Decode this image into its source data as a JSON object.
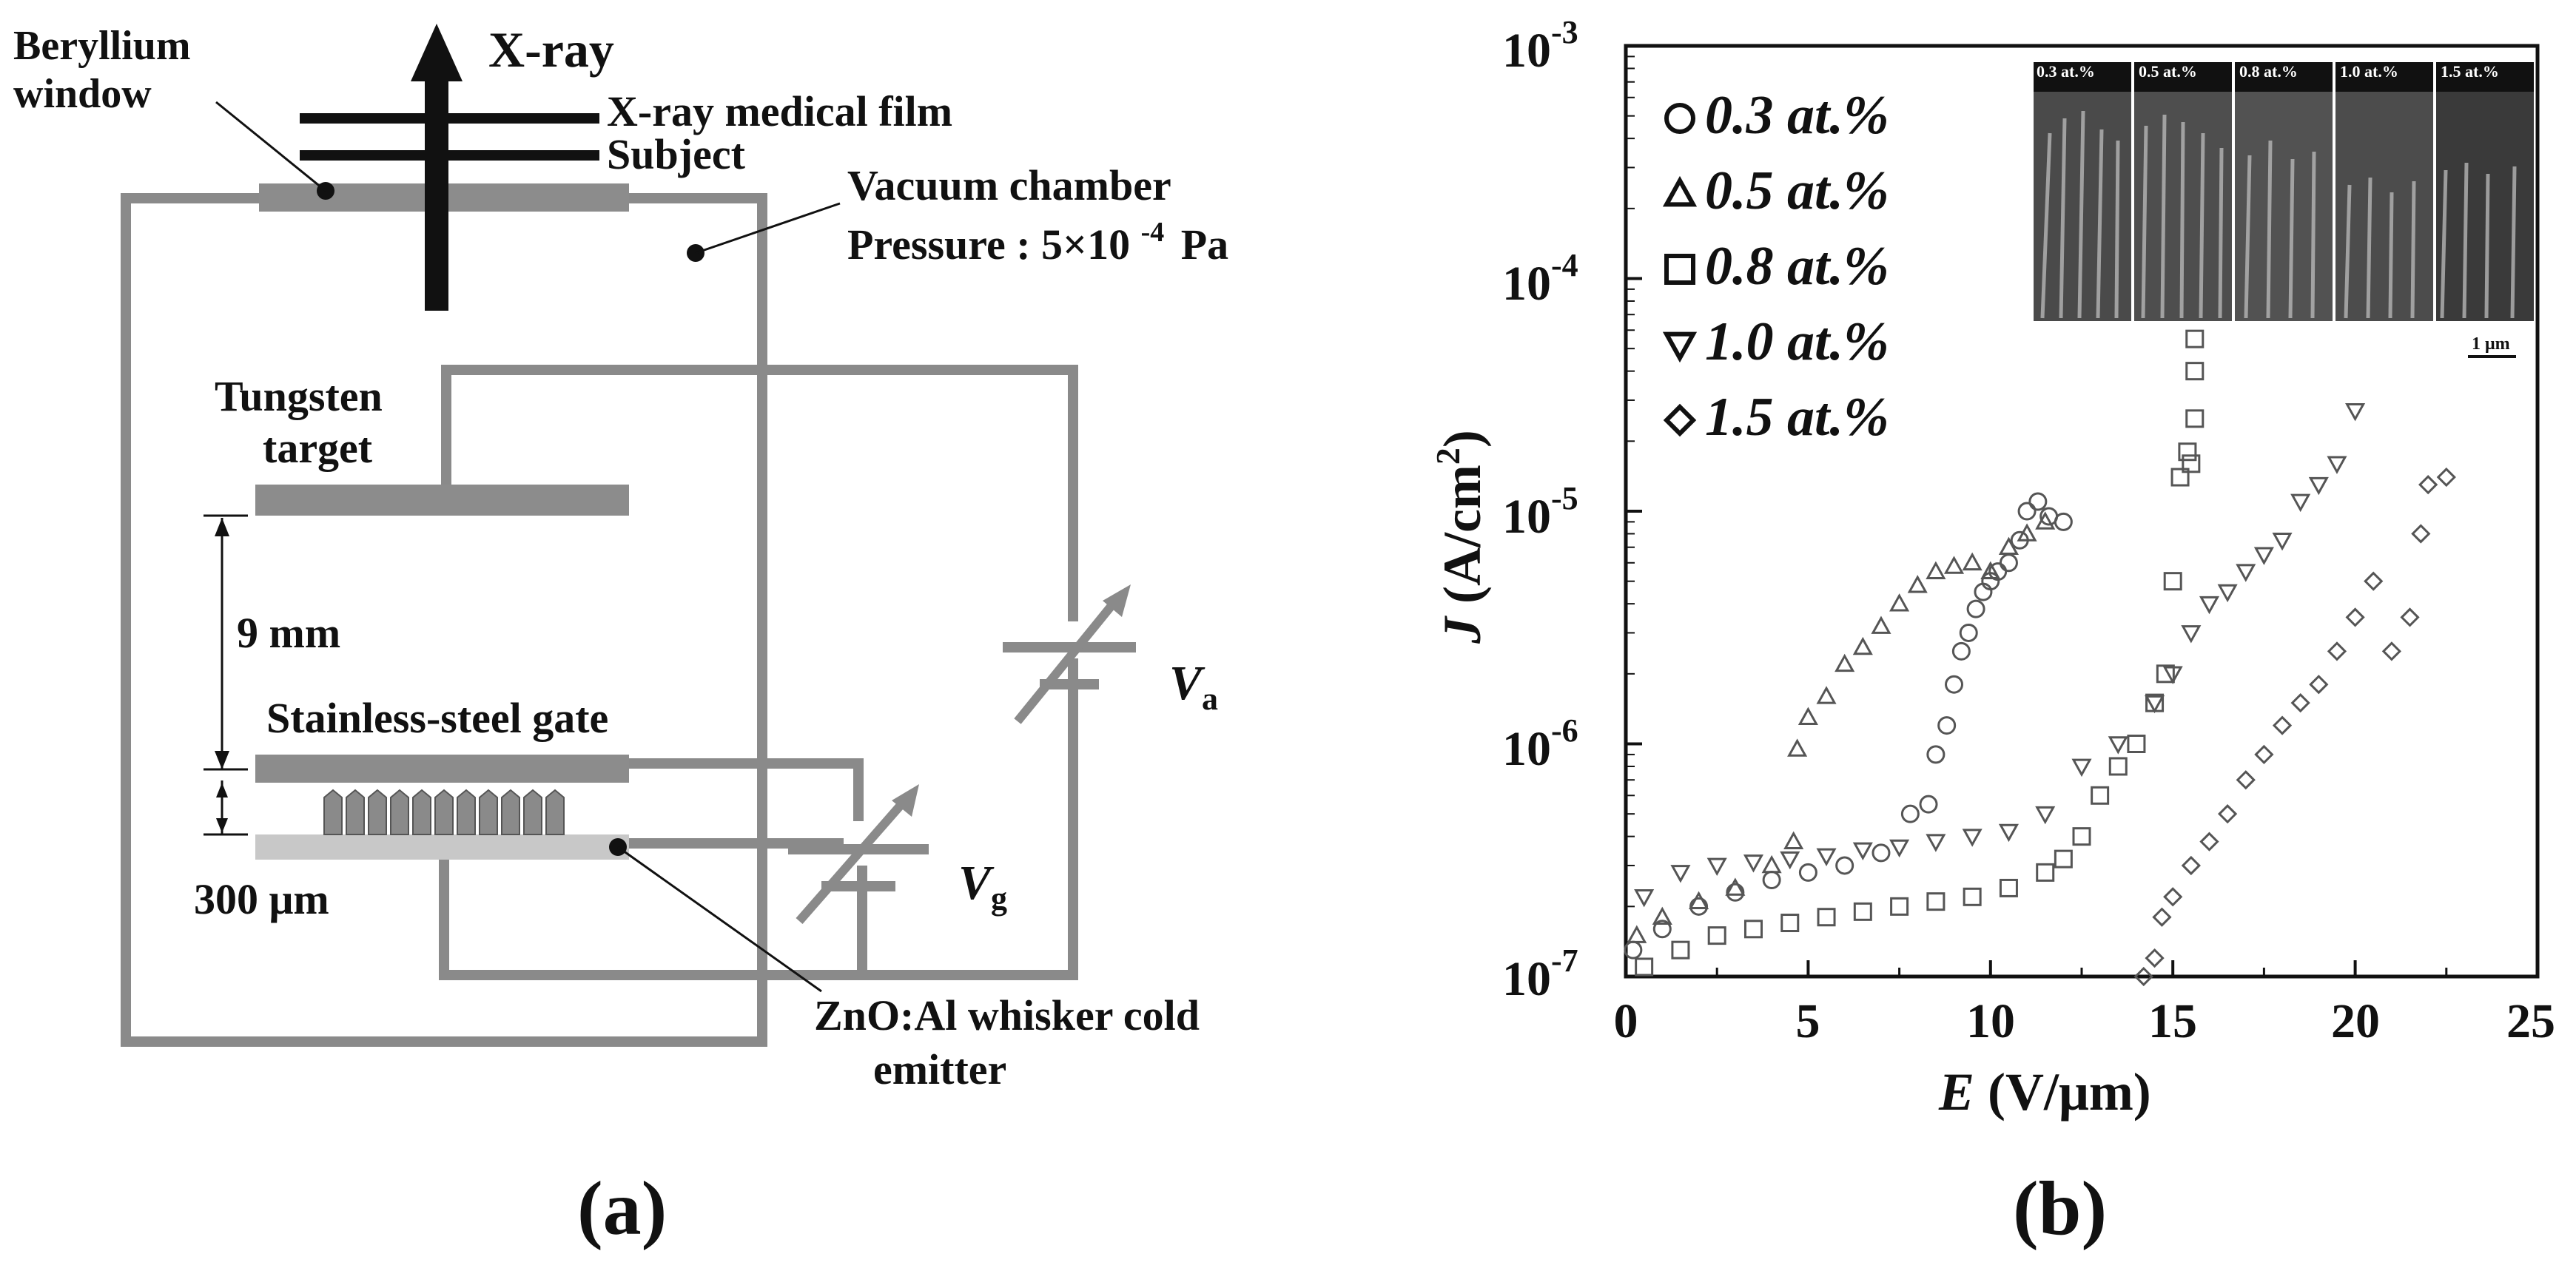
{
  "panel_a": {
    "caption": "(a)",
    "labels": {
      "beryllium": "Beryllium",
      "window": "window",
      "xray": "X-ray",
      "film": "X-ray medical film",
      "subject": "Subject",
      "vacuum_chamber": "Vacuum chamber",
      "pressure_prefix": "Pressure :",
      "pressure_value": "5×10",
      "pressure_exp": "-4",
      "pressure_unit": "Pa",
      "tungsten": "Tungsten",
      "target": "target",
      "distance_9mm": "9 mm",
      "gate": "Stainless-steel gate",
      "distance_300um": "300 μm",
      "va_symbol": "V",
      "va_sub": "a",
      "vg_symbol": "V",
      "vg_sub": "g",
      "emitter_line1": "ZnO:Al whisker cold",
      "emitter_line2": "emitter"
    },
    "colors": {
      "wire": "#8a8a8a",
      "plate": "#8c8c8c",
      "cathode": "#c8c8c8",
      "arrow": "#111111"
    }
  },
  "panel_b": {
    "caption": "(b)",
    "inset": {
      "panel_labels": [
        "0.3 at.%",
        "0.5 at.%",
        "0.8 at.%",
        "1.0 at.%",
        "1.5 at.%"
      ],
      "scale_bar": "1 μm"
    },
    "chart_data": {
      "type": "scatter",
      "title": "",
      "xlabel_var": "E",
      "xlabel_unit": "(V/μm)",
      "ylabel_var": "J",
      "ylabel_unit_pre": "(A/cm",
      "ylabel_unit_exp": "2",
      "ylabel_unit_post": ")",
      "xlim": [
        0,
        25
      ],
      "ylim": [
        1e-07,
        0.001
      ],
      "yscale": "log",
      "x_ticks": [
        "0",
        "5",
        "10",
        "15",
        "20",
        "25"
      ],
      "x_tick_values": [
        0,
        5,
        10,
        15,
        20,
        25
      ],
      "y_ticks": [
        {
          "base": "10",
          "exp": "-7",
          "value": 1e-07
        },
        {
          "base": "10",
          "exp": "-6",
          "value": 1e-06
        },
        {
          "base": "10",
          "exp": "-5",
          "value": 1e-05
        },
        {
          "base": "10",
          "exp": "-4",
          "value": 0.0001
        },
        {
          "base": "10",
          "exp": "-3",
          "value": 0.001
        }
      ],
      "legend_position": "top-left",
      "series": [
        {
          "name": "0.3 at.%",
          "marker": "circle",
          "x": [
            0.2,
            1.0,
            2.0,
            3.0,
            4.0,
            5.0,
            6.0,
            7.0,
            7.8,
            8.3,
            8.5,
            8.8,
            9.0,
            9.2,
            9.4,
            9.6,
            9.8,
            10.0,
            10.2,
            10.5,
            10.8,
            11.0,
            11.3,
            11.6,
            12.0
          ],
          "y": [
            1.3e-07,
            1.6e-07,
            2e-07,
            2.3e-07,
            2.6e-07,
            2.8e-07,
            3e-07,
            3.4e-07,
            5e-07,
            5.5e-07,
            9e-07,
            1.2e-06,
            1.8e-06,
            2.5e-06,
            3e-06,
            3.8e-06,
            4.5e-06,
            5e-06,
            5.5e-06,
            6e-06,
            7.5e-06,
            1e-05,
            1.1e-05,
            9.5e-06,
            9e-06
          ]
        },
        {
          "name": "0.5 at.%",
          "marker": "triangle-up",
          "x": [
            0.3,
            1.0,
            2.0,
            3.0,
            4.0,
            4.6,
            4.7,
            5.0,
            5.5,
            6.0,
            6.5,
            7.0,
            7.5,
            8.0,
            8.5,
            9.0,
            9.5,
            10.0,
            10.5,
            11.0,
            11.5
          ],
          "y": [
            1.5e-07,
            1.8e-07,
            2.1e-07,
            2.4e-07,
            3e-07,
            3.8e-07,
            9.5e-07,
            1.3e-06,
            1.6e-06,
            2.2e-06,
            2.6e-06,
            3.2e-06,
            4e-06,
            4.8e-06,
            5.5e-06,
            5.8e-06,
            6e-06,
            5.5e-06,
            7e-06,
            8e-06,
            9e-06
          ]
        },
        {
          "name": "0.8 at.%",
          "marker": "square",
          "x": [
            0.5,
            1.5,
            2.5,
            3.5,
            4.5,
            5.5,
            6.5,
            7.5,
            8.5,
            9.5,
            10.5,
            11.5,
            12.0,
            12.5,
            13.0,
            13.5,
            14.0,
            14.5,
            14.8,
            15.0,
            15.2,
            15.4,
            15.5,
            15.6,
            15.6,
            15.6
          ],
          "y": [
            1.1e-07,
            1.3e-07,
            1.5e-07,
            1.6e-07,
            1.7e-07,
            1.8e-07,
            1.9e-07,
            2e-07,
            2.1e-07,
            2.2e-07,
            2.4e-07,
            2.8e-07,
            3.2e-07,
            4e-07,
            6e-07,
            8e-07,
            1e-06,
            1.5e-06,
            2e-06,
            5e-06,
            1.4e-05,
            1.8e-05,
            1.6e-05,
            2.5e-05,
            4e-05,
            5.5e-05
          ]
        },
        {
          "name": "1.0 at.%",
          "marker": "triangle-down",
          "x": [
            0.5,
            1.5,
            2.5,
            3.5,
            4.5,
            5.5,
            6.5,
            7.5,
            8.5,
            9.5,
            10.5,
            11.5,
            12.5,
            13.5,
            14.5,
            15.0,
            15.5,
            16.0,
            16.5,
            17.0,
            17.5,
            18.0,
            18.5,
            19.0,
            19.5,
            20.0
          ],
          "y": [
            2.2e-07,
            2.8e-07,
            3e-07,
            3.1e-07,
            3.2e-07,
            3.3e-07,
            3.5e-07,
            3.6e-07,
            3.8e-07,
            4e-07,
            4.2e-07,
            5e-07,
            8e-07,
            1e-06,
            1.5e-06,
            2e-06,
            3e-06,
            4e-06,
            4.5e-06,
            5.5e-06,
            6.5e-06,
            7.5e-06,
            1.1e-05,
            1.3e-05,
            1.6e-05,
            2.7e-05
          ]
        },
        {
          "name": "1.5 at.%",
          "marker": "diamond",
          "x": [
            14.2,
            14.5,
            14.7,
            15.0,
            15.5,
            16.0,
            16.5,
            17.0,
            17.5,
            18.0,
            18.5,
            19.0,
            19.5,
            20.0,
            20.5,
            21.0,
            21.5,
            21.8,
            22.0,
            22.5
          ],
          "y": [
            1e-07,
            1.2e-07,
            1.8e-07,
            2.2e-07,
            3e-07,
            3.8e-07,
            5e-07,
            7e-07,
            9e-07,
            1.2e-06,
            1.5e-06,
            1.8e-06,
            2.5e-06,
            3.5e-06,
            5e-06,
            2.5e-06,
            3.5e-06,
            8e-06,
            1.3e-05,
            1.4e-05
          ]
        }
      ]
    }
  }
}
